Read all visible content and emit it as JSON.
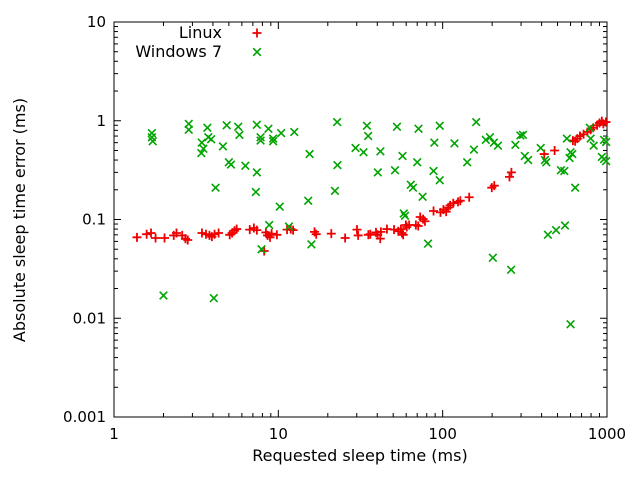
{
  "chart_data": {
    "type": "scatter",
    "title": "",
    "xlabel": "Requested sleep time (ms)",
    "ylabel": "Absolute sleep time error (ms)",
    "x_scale": "log",
    "y_scale": "log",
    "xlim": [
      1,
      1000
    ],
    "ylim": [
      0.001,
      10
    ],
    "x_ticks": [
      1,
      10,
      100,
      1000
    ],
    "x_tick_labels": [
      "1",
      "10",
      "100",
      "1000"
    ],
    "y_ticks": [
      0.001,
      0.01,
      0.1,
      1,
      10
    ],
    "y_tick_labels": [
      "0.001",
      "0.01",
      "0.1",
      "1",
      "10"
    ],
    "grid": false,
    "legend_position": "inside-top-center",
    "series": [
      {
        "name": "Linux",
        "marker": "plus",
        "color": "#ee0000",
        "points": [
          [
            1.38,
            0.066
          ],
          [
            1.58,
            0.071
          ],
          [
            1.68,
            0.073
          ],
          [
            1.79,
            0.065
          ],
          [
            2.03,
            0.065
          ],
          [
            2.31,
            0.069
          ],
          [
            2.4,
            0.073
          ],
          [
            2.6,
            0.069
          ],
          [
            2.72,
            0.064
          ],
          [
            2.81,
            0.062
          ],
          [
            3.43,
            0.073
          ],
          [
            3.63,
            0.071
          ],
          [
            3.81,
            0.069
          ],
          [
            3.94,
            0.067
          ],
          [
            4.09,
            0.071
          ],
          [
            4.33,
            0.073
          ],
          [
            5.06,
            0.07
          ],
          [
            5.23,
            0.073
          ],
          [
            5.41,
            0.077
          ],
          [
            5.58,
            0.08
          ],
          [
            6.7,
            0.079
          ],
          [
            7.1,
            0.082
          ],
          [
            7.4,
            0.078
          ],
          [
            8.2,
            0.048
          ],
          [
            8.4,
            0.074
          ],
          [
            8.6,
            0.069
          ],
          [
            8.9,
            0.066
          ],
          [
            9.1,
            0.072
          ],
          [
            9.8,
            0.07
          ],
          [
            11.3,
            0.079
          ],
          [
            11.9,
            0.08
          ],
          [
            12.3,
            0.078
          ],
          [
            16.6,
            0.075
          ],
          [
            17,
            0.071
          ],
          [
            21,
            0.072
          ],
          [
            25.5,
            0.065
          ],
          [
            30.1,
            0.079
          ],
          [
            30.6,
            0.069
          ],
          [
            35.3,
            0.07
          ],
          [
            36.3,
            0.071
          ],
          [
            39.3,
            0.074
          ],
          [
            40.2,
            0.07
          ],
          [
            41.7,
            0.064
          ],
          [
            42.1,
            0.075
          ],
          [
            45.8,
            0.08
          ],
          [
            50.6,
            0.079
          ],
          [
            53.7,
            0.076
          ],
          [
            55.7,
            0.08
          ],
          [
            56.5,
            0.073
          ],
          [
            57.5,
            0.07
          ],
          [
            59.7,
            0.088
          ],
          [
            60.5,
            0.084
          ],
          [
            62.5,
            0.088
          ],
          [
            68.7,
            0.088
          ],
          [
            71,
            0.086
          ],
          [
            73,
            0.106
          ],
          [
            76,
            0.101
          ],
          [
            78,
            0.096
          ],
          [
            88,
            0.122
          ],
          [
            97,
            0.118
          ],
          [
            101,
            0.126
          ],
          [
            105,
            0.12
          ],
          [
            108,
            0.132
          ],
          [
            111,
            0.139
          ],
          [
            116,
            0.146
          ],
          [
            124,
            0.151
          ],
          [
            128,
            0.155
          ],
          [
            145,
            0.168
          ],
          [
            199,
            0.21
          ],
          [
            206,
            0.22
          ],
          [
            255,
            0.27
          ],
          [
            262,
            0.3
          ],
          [
            415,
            0.46
          ],
          [
            480,
            0.5
          ],
          [
            620,
            0.63
          ],
          [
            640,
            0.62
          ],
          [
            660,
            0.66
          ],
          [
            685,
            0.7
          ],
          [
            720,
            0.73
          ],
          [
            760,
            0.77
          ],
          [
            795,
            0.81
          ],
          [
            825,
            0.85
          ],
          [
            870,
            0.9
          ],
          [
            900,
            0.95
          ],
          [
            930,
            0.99
          ],
          [
            950,
            0.93
          ],
          [
            985,
            0.97
          ]
        ]
      },
      {
        "name": "Windows 7",
        "marker": "cross",
        "color": "#00a400",
        "points": [
          [
            1.7,
            0.75
          ],
          [
            1.7,
            0.68
          ],
          [
            1.72,
            0.62
          ],
          [
            2,
            0.017
          ],
          [
            2.85,
            0.93
          ],
          [
            2.85,
            0.81
          ],
          [
            3.42,
            0.6
          ],
          [
            3.5,
            0.52
          ],
          [
            3.4,
            0.47
          ],
          [
            3.7,
            0.85
          ],
          [
            3.75,
            0.68
          ],
          [
            3.9,
            0.65
          ],
          [
            4.05,
            0.016
          ],
          [
            4.15,
            0.21
          ],
          [
            4.6,
            0.55
          ],
          [
            4.85,
            0.9
          ],
          [
            5,
            0.38
          ],
          [
            5.15,
            0.36
          ],
          [
            5.7,
            0.87
          ],
          [
            5.8,
            0.72
          ],
          [
            6.3,
            0.35
          ],
          [
            7.3,
            0.19
          ],
          [
            7.4,
            0.91
          ],
          [
            7.4,
            0.3
          ],
          [
            7.8,
            0.68
          ],
          [
            7.8,
            0.63
          ],
          [
            7.9,
            0.05
          ],
          [
            8.7,
            0.83
          ],
          [
            8.8,
            0.088
          ],
          [
            9.3,
            0.66
          ],
          [
            9.3,
            0.62
          ],
          [
            10.2,
            0.135
          ],
          [
            10.4,
            0.75
          ],
          [
            11.6,
            0.085
          ],
          [
            12.5,
            0.77
          ],
          [
            15.2,
            0.155
          ],
          [
            15.5,
            0.46
          ],
          [
            15.9,
            0.056
          ],
          [
            22.1,
            0.195
          ],
          [
            22.8,
            0.97
          ],
          [
            22.9,
            0.355
          ],
          [
            29.5,
            0.53
          ],
          [
            33,
            0.48
          ],
          [
            34.6,
            0.89
          ],
          [
            35.2,
            0.7
          ],
          [
            40.3,
            0.3
          ],
          [
            41.8,
            0.49
          ],
          [
            51.3,
            0.315
          ],
          [
            52.7,
            0.87
          ],
          [
            57,
            0.44
          ],
          [
            58,
            0.115
          ],
          [
            59,
            0.109
          ],
          [
            64,
            0.225
          ],
          [
            66,
            0.21
          ],
          [
            70,
            0.38
          ],
          [
            71.3,
            0.83
          ],
          [
            75.5,
            0.17
          ],
          [
            81.5,
            0.057
          ],
          [
            88,
            0.31
          ],
          [
            89,
            0.6
          ],
          [
            96,
            0.89
          ],
          [
            96,
            0.25
          ],
          [
            118,
            0.59
          ],
          [
            141,
            0.38
          ],
          [
            155,
            0.51
          ],
          [
            160,
            0.97
          ],
          [
            183,
            0.64
          ],
          [
            194,
            0.68
          ],
          [
            205,
            0.6
          ],
          [
            217,
            0.56
          ],
          [
            202,
            0.041
          ],
          [
            261,
            0.031
          ],
          [
            277,
            0.57
          ],
          [
            297,
            0.71
          ],
          [
            308,
            0.72
          ],
          [
            316,
            0.44
          ],
          [
            331,
            0.4
          ],
          [
            395,
            0.53
          ],
          [
            419,
            0.4
          ],
          [
            427,
            0.38
          ],
          [
            437,
            0.07
          ],
          [
            490,
            0.078
          ],
          [
            555,
            0.087
          ],
          [
            524,
            0.315
          ],
          [
            550,
            0.31
          ],
          [
            570,
            0.66
          ],
          [
            600,
            0.48
          ],
          [
            615,
            0.46
          ],
          [
            592,
            0.42
          ],
          [
            640,
            0.21
          ],
          [
            600,
            0.0087
          ],
          [
            786,
            0.85
          ],
          [
            795,
            0.66
          ],
          [
            830,
            0.56
          ],
          [
            930,
            0.43
          ],
          [
            960,
            0.41
          ],
          [
            988,
            0.39
          ],
          [
            960,
            0.64
          ],
          [
            988,
            0.61
          ]
        ]
      }
    ]
  },
  "colors": {
    "background": "#ffffff",
    "axis": "#000000",
    "linux": "#ee0000",
    "windows7": "#00a400"
  }
}
